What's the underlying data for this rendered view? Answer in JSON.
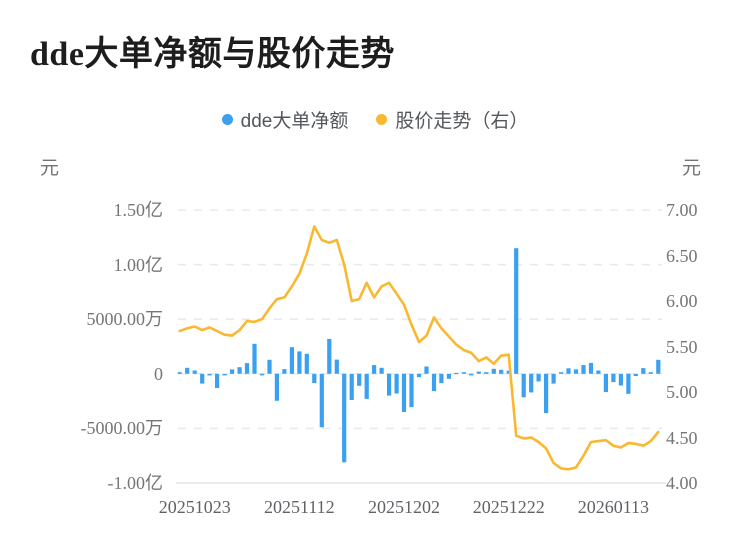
{
  "page": {
    "title": "dde大单净额与股价走势"
  },
  "legend": [
    {
      "label": "dde大单净额",
      "color": "#3aa0ef",
      "marker": "circle"
    },
    {
      "label": "股价走势（右）",
      "color": "#f9b82f",
      "marker": "circle"
    }
  ],
  "axes": {
    "left_unit": "元",
    "right_unit": "元",
    "left_ticks": [
      "1.50亿",
      "1.00亿",
      "5000.00万",
      "0",
      "-5000.00万",
      "-1.00亿"
    ],
    "right_ticks": [
      "7.00",
      "6.50",
      "6.00",
      "5.50",
      "5.00",
      "4.50",
      "4.00"
    ],
    "x_ticks": [
      "20251023",
      "20251112",
      "20251202",
      "20251222",
      "20260113"
    ]
  },
  "chart_data": {
    "type": "bar+line",
    "title": "dde大单净额与股价走势",
    "x_labels": [
      "20251023",
      "20251112",
      "20251202",
      "20251222",
      "20260113"
    ],
    "x_label_indices": [
      2,
      16,
      30,
      44,
      58
    ],
    "point_count": 65,
    "left_axis": {
      "unit": "万元",
      "max": 15000,
      "min": -10000,
      "tick_values": [
        15000,
        10000,
        5000,
        0,
        -5000,
        -10000
      ]
    },
    "right_axis": {
      "unit": "元",
      "max": 7.0,
      "min": 4.0,
      "tick_values": [
        7.0,
        6.5,
        6.0,
        5.5,
        5.0,
        4.5,
        4.0
      ]
    },
    "grid": "horizontal-dashed",
    "legend_position": "top-center",
    "series": [
      {
        "name": "dde大单净额",
        "type": "bar",
        "axis": "left",
        "unit": "万元",
        "color": "#3aa0ef",
        "values": [
          150,
          550,
          300,
          -900,
          -150,
          -1300,
          -150,
          400,
          600,
          980,
          2750,
          -150,
          1280,
          -2470,
          430,
          2440,
          2050,
          1830,
          -850,
          -4900,
          3200,
          1300,
          -8100,
          -2400,
          -1100,
          -2300,
          800,
          550,
          -2000,
          -1800,
          -3500,
          -3050,
          -300,
          670,
          -1580,
          -850,
          -460,
          80,
          150,
          -150,
          200,
          150,
          460,
          370,
          280,
          11500,
          -2150,
          -1700,
          -700,
          -3600,
          -900,
          150,
          500,
          400,
          800,
          1000,
          300,
          -1680,
          -760,
          -1070,
          -1830,
          -200,
          520,
          150,
          1280
        ]
      },
      {
        "name": "股价走势（右）",
        "type": "line",
        "axis": "right",
        "unit": "元",
        "color": "#f9b82f",
        "values": [
          5.67,
          5.7,
          5.72,
          5.68,
          5.71,
          5.67,
          5.63,
          5.62,
          5.68,
          5.78,
          5.77,
          5.8,
          5.92,
          6.02,
          6.04,
          6.16,
          6.3,
          6.52,
          6.82,
          6.67,
          6.64,
          6.67,
          6.4,
          6.0,
          6.02,
          6.2,
          6.04,
          6.16,
          6.2,
          6.08,
          5.96,
          5.74,
          5.55,
          5.62,
          5.82,
          5.7,
          5.61,
          5.52,
          5.46,
          5.43,
          5.34,
          5.38,
          5.31,
          5.4,
          5.41,
          4.52,
          4.49,
          4.5,
          4.45,
          4.38,
          4.22,
          4.16,
          4.15,
          4.17,
          4.3,
          4.45,
          4.46,
          4.47,
          4.41,
          4.39,
          4.44,
          4.43,
          4.41,
          4.46,
          4.56
        ]
      }
    ]
  },
  "colors": {
    "bar": "#3aa0ef",
    "line": "#f9b82f",
    "grid": "#e9e9e9",
    "axis_line": "#ececec",
    "axis_label": "#767676",
    "x_label": "#5f6368",
    "title": "#1d1d1d",
    "legend_text": "#53575c",
    "background": "#ffffff"
  }
}
